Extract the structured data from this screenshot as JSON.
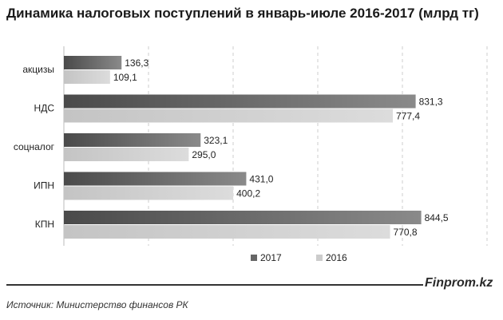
{
  "title": "Динамика налоговых поступлений в январь-июле 2016-2017 (млрд тг)",
  "footer": {
    "brand": "Finprom.kz",
    "source": "Источник:  Министерство финансов РК"
  },
  "colors": {
    "series_2017": "#6a6a6a",
    "series_2016": "#d0d0d0",
    "grid": "#cccccc"
  },
  "chart_data": {
    "type": "bar",
    "orientation": "horizontal",
    "title": "Динамика налоговых поступлений в январь-июле 2016-2017 (млрд тг)",
    "categories": [
      "акцизы",
      "НДС",
      "соцналог",
      "ИПН",
      "КПН"
    ],
    "series": [
      {
        "name": "2017",
        "values": [
          136.3,
          831.3,
          323.1,
          431.0,
          844.5
        ],
        "labels": [
          "136,3",
          "831,3",
          "323,1",
          "431,0",
          "844,5"
        ]
      },
      {
        "name": "2016",
        "values": [
          109.1,
          777.4,
          295.0,
          400.2,
          770.8
        ],
        "labels": [
          "109,1",
          "777,4",
          "295,0",
          "400,2",
          "770,8"
        ]
      }
    ],
    "xlim": [
      0,
      1000
    ],
    "grid": "vertical dashed",
    "legend": "bottom"
  }
}
